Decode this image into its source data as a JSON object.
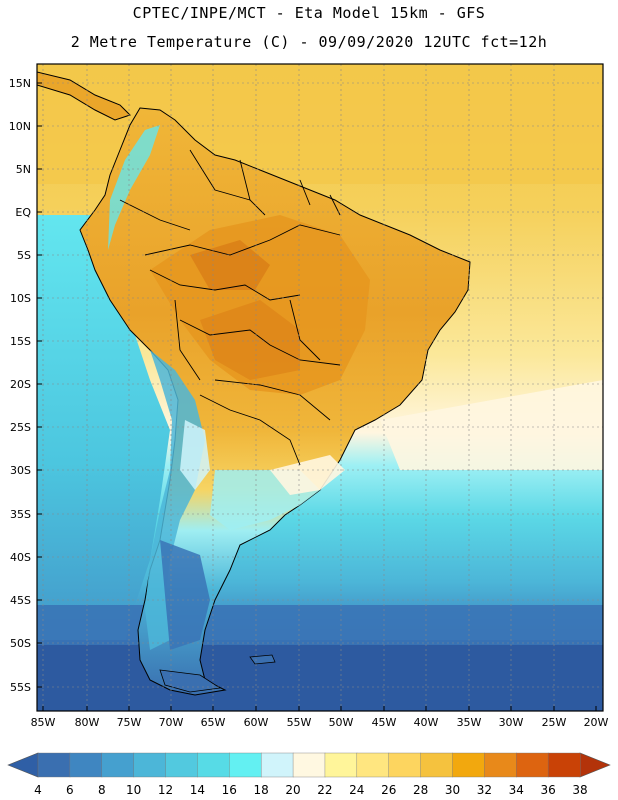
{
  "header": {
    "line1": "CPTEC/INPE/MCT -  Eta Model 15km - GFS",
    "line2": "2 Metre Temperature (C) - 09/09/2020 12UTC fct=12h"
  },
  "map": {
    "lat_labels": [
      "15N",
      "10N",
      "5N",
      "EQ",
      "5S",
      "10S",
      "15S",
      "20S",
      "25S",
      "30S",
      "35S",
      "40S",
      "45S",
      "50S",
      "55S"
    ],
    "lon_labels": [
      "85W",
      "80W",
      "75W",
      "70W",
      "65W",
      "60W",
      "55W",
      "50W",
      "45W",
      "40W",
      "35W",
      "30W",
      "25W",
      "20W"
    ]
  },
  "colorbar": {
    "values": [
      "4",
      "6",
      "8",
      "10",
      "12",
      "14",
      "16",
      "18",
      "20",
      "22",
      "24",
      "26",
      "28",
      "30",
      "32",
      "34",
      "36",
      "38"
    ],
    "colors": [
      "#3a6fb0",
      "#3f86c1",
      "#45a0cf",
      "#4cb6d8",
      "#52c9df",
      "#57dbe6",
      "#63f0f2",
      "#d0f4fb",
      "#fff8e1",
      "#fff59a",
      "#ffe680",
      "#fdd55f",
      "#f5c23e",
      "#f2a80e",
      "#e8891a",
      "#dd6410",
      "#c94206"
    ],
    "left_arrow_color": "#2f5fa6",
    "right_arrow_color": "#b3330a"
  },
  "palette": {
    "ocean_warm": "#f6d665",
    "ocean_hot": "#f1c945",
    "land_hot": "#eaa62a",
    "land_very_hot": "#e08b1c",
    "land_mild": "#f3c64a",
    "cold_blue": "#3a74b6",
    "mid_blue": "#4cb6d8",
    "deep_blue": "#2d5aa0",
    "pale_cyan": "#9deef2"
  }
}
